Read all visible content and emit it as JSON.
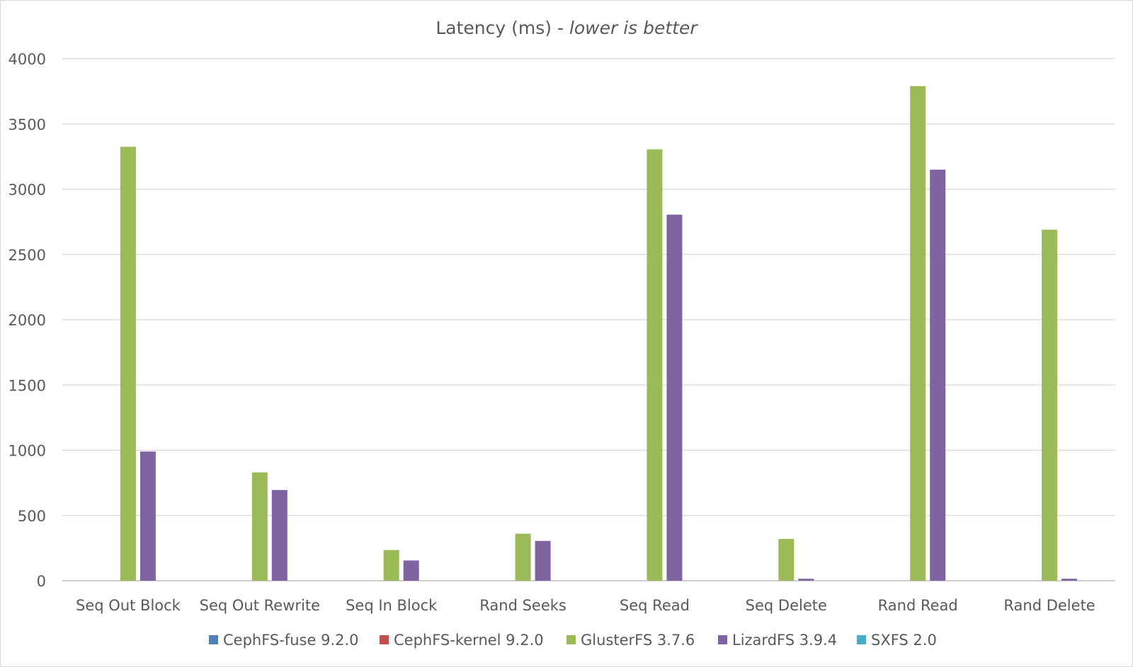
{
  "chart_data": {
    "type": "bar",
    "title": "Latency (ms) - ",
    "title_emphasis": "lower is better",
    "xlabel": "",
    "ylabel": "",
    "ylim": [
      0,
      4000
    ],
    "yticks": [
      0,
      500,
      1000,
      1500,
      2000,
      2500,
      3000,
      3500,
      4000
    ],
    "grid": true,
    "legend_position": "bottom",
    "categories": [
      "Seq Out Block",
      "Seq Out Rewrite",
      "Seq In Block",
      "Rand Seeks",
      "Seq Read",
      "Seq Delete",
      "Rand Read",
      "Rand Delete"
    ],
    "series": [
      {
        "name": "CephFS-fuse 9.2.0",
        "color": "#4f81bd",
        "values": [
          0,
          0,
          0,
          0,
          0,
          0,
          0,
          0
        ]
      },
      {
        "name": "CephFS-kernel 9.2.0",
        "color": "#c0504d",
        "values": [
          0,
          0,
          0,
          0,
          0,
          0,
          0,
          0
        ]
      },
      {
        "name": "GlusterFS 3.7.6",
        "color": "#9bbb59",
        "values": [
          3325,
          830,
          235,
          360,
          3305,
          320,
          3790,
          2690
        ]
      },
      {
        "name": "LizardFS 3.9.4",
        "color": "#8064a2",
        "values": [
          990,
          695,
          155,
          305,
          2805,
          15,
          3150,
          15
        ]
      },
      {
        "name": "SXFS 2.0",
        "color": "#4bacc6",
        "values": [
          0,
          0,
          0,
          0,
          0,
          0,
          0,
          0
        ]
      }
    ]
  }
}
